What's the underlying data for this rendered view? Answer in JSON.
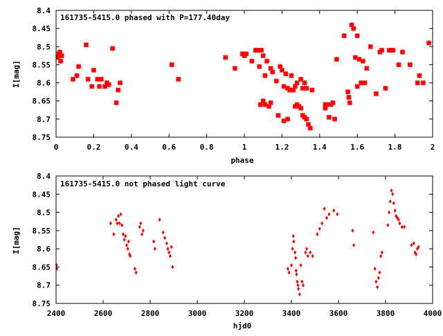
{
  "colors": {
    "points": "#ff0000",
    "frame": "#000000",
    "background": "#ffffff"
  },
  "chart_data": [
    {
      "type": "scatter",
      "title": "161735-5415.0 phased with P=177.40day",
      "xlabel": "phase",
      "ylabel": "I[mag]",
      "xlim": [
        0,
        2
      ],
      "ylim": [
        8.4,
        8.75
      ],
      "y_inverted": true,
      "grid": false,
      "x_ticks": [
        "0",
        "0.2",
        "0.4",
        "0.6",
        "0.8",
        "1",
        "1.2",
        "1.4",
        "1.6",
        "1.8",
        "2"
      ],
      "y_ticks": [
        "8.4",
        "8.45",
        "8.5",
        "8.55",
        "8.6",
        "8.65",
        "8.7",
        "8.75"
      ],
      "marker": "star",
      "series": [
        {
          "points": [
            [
              0.01,
              8.53
            ],
            [
              0.015,
              8.52
            ],
            [
              0.02,
              8.515
            ],
            [
              0.025,
              8.54
            ],
            [
              0.03,
              8.525
            ],
            [
              0.09,
              8.59
            ],
            [
              0.11,
              8.58
            ],
            [
              0.12,
              8.555
            ],
            [
              0.16,
              8.495
            ],
            [
              0.17,
              8.59
            ],
            [
              0.19,
              8.61
            ],
            [
              0.2,
              8.565
            ],
            [
              0.22,
              8.59
            ],
            [
              0.23,
              8.61
            ],
            [
              0.24,
              8.59
            ],
            [
              0.26,
              8.61
            ],
            [
              0.27,
              8.6
            ],
            [
              0.28,
              8.605
            ],
            [
              0.3,
              8.505
            ],
            [
              0.32,
              8.655
            ],
            [
              0.33,
              8.62
            ],
            [
              0.34,
              8.6
            ],
            [
              0.615,
              8.55
            ],
            [
              0.65,
              8.59
            ],
            [
              0.9,
              8.53
            ],
            [
              0.95,
              8.56
            ],
            [
              0.99,
              8.52
            ],
            [
              1.0,
              8.525
            ],
            [
              1.01,
              8.52
            ],
            [
              1.04,
              8.54
            ],
            [
              1.06,
              8.51
            ],
            [
              1.07,
              8.51
            ],
            [
              1.08,
              8.555
            ],
            [
              1.085,
              8.66
            ],
            [
              1.09,
              8.51
            ],
            [
              1.1,
              8.65
            ],
            [
              1.1,
              8.525
            ],
            [
              1.11,
              8.58
            ],
            [
              1.11,
              8.66
            ],
            [
              1.12,
              8.54
            ],
            [
              1.13,
              8.665
            ],
            [
              1.14,
              8.655
            ],
            [
              1.14,
              8.56
            ],
            [
              1.15,
              8.57
            ],
            [
              1.17,
              8.595
            ],
            [
              1.18,
              8.69
            ],
            [
              1.19,
              8.555
            ],
            [
              1.2,
              8.565
            ],
            [
              1.21,
              8.61
            ],
            [
              1.21,
              8.705
            ],
            [
              1.22,
              8.575
            ],
            [
              1.23,
              8.615
            ],
            [
              1.23,
              8.7
            ],
            [
              1.24,
              8.62
            ],
            [
              1.25,
              8.58
            ],
            [
              1.25,
              8.62
            ],
            [
              1.26,
              8.62
            ],
            [
              1.27,
              8.61
            ],
            [
              1.27,
              8.665
            ],
            [
              1.28,
              8.6
            ],
            [
              1.28,
              8.66
            ],
            [
              1.29,
              8.665
            ],
            [
              1.3,
              8.59
            ],
            [
              1.3,
              8.67
            ],
            [
              1.31,
              8.615
            ],
            [
              1.31,
              8.69
            ],
            [
              1.32,
              8.695
            ],
            [
              1.32,
              8.6
            ],
            [
              1.33,
              8.615
            ],
            [
              1.33,
              8.7
            ],
            [
              1.34,
              8.715
            ],
            [
              1.35,
              8.725
            ],
            [
              1.36,
              8.62
            ],
            [
              1.43,
              8.66
            ],
            [
              1.43,
              8.67
            ],
            [
              1.44,
              8.66
            ],
            [
              1.45,
              8.695
            ],
            [
              1.46,
              8.66
            ],
            [
              1.47,
              8.655
            ],
            [
              1.48,
              8.7
            ],
            [
              1.49,
              8.535
            ],
            [
              1.53,
              8.47
            ],
            [
              1.55,
              8.625
            ],
            [
              1.555,
              8.64
            ],
            [
              1.56,
              8.655
            ],
            [
              1.57,
              8.44
            ],
            [
              1.58,
              8.45
            ],
            [
              1.59,
              8.53
            ],
            [
              1.6,
              8.47
            ],
            [
              1.6,
              8.61
            ],
            [
              1.61,
              8.535
            ],
            [
              1.62,
              8.6
            ],
            [
              1.63,
              8.54
            ],
            [
              1.64,
              8.6
            ],
            [
              1.65,
              8.56
            ],
            [
              1.67,
              8.5
            ],
            [
              1.7,
              8.63
            ],
            [
              1.72,
              8.515
            ],
            [
              1.73,
              8.51
            ],
            [
              1.75,
              8.615
            ],
            [
              1.77,
              8.51
            ],
            [
              1.79,
              8.51
            ],
            [
              1.82,
              8.55
            ],
            [
              1.84,
              8.515
            ],
            [
              1.88,
              8.55
            ],
            [
              1.92,
              8.6
            ],
            [
              1.93,
              8.58
            ],
            [
              1.95,
              8.6
            ],
            [
              1.98,
              8.49
            ]
          ]
        }
      ]
    },
    {
      "type": "scatter",
      "title": "161735-5415.0 not phased light curve",
      "xlabel": "hjd0",
      "ylabel": "I[mag]",
      "xlim": [
        2400,
        4000
      ],
      "ylim": [
        8.4,
        8.75
      ],
      "y_inverted": true,
      "grid": false,
      "x_ticks": [
        "2400",
        "2600",
        "2800",
        "3000",
        "3200",
        "3400",
        "3600",
        "3800",
        "4000"
      ],
      "y_ticks": [
        "8.4",
        "8.45",
        "8.5",
        "8.55",
        "8.6",
        "8.65",
        "8.7",
        "8.75"
      ],
      "marker": "diamond",
      "series": [
        {
          "points": [
            [
              2402,
              8.645
            ],
            [
              2403,
              8.655
            ],
            [
              2632,
              8.53
            ],
            [
              2645,
              8.56
            ],
            [
              2655,
              8.52
            ],
            [
              2660,
              8.53
            ],
            [
              2665,
              8.51
            ],
            [
              2670,
              8.53
            ],
            [
              2675,
              8.505
            ],
            [
              2680,
              8.535
            ],
            [
              2685,
              8.56
            ],
            [
              2690,
              8.575
            ],
            [
              2695,
              8.565
            ],
            [
              2700,
              8.59
            ],
            [
              2705,
              8.6
            ],
            [
              2708,
              8.58
            ],
            [
              2712,
              8.615
            ],
            [
              2715,
              8.62
            ],
            [
              2735,
              8.655
            ],
            [
              2740,
              8.665
            ],
            [
              2755,
              8.54
            ],
            [
              2760,
              8.53
            ],
            [
              2765,
              8.56
            ],
            [
              2770,
              8.55
            ],
            [
              2815,
              8.58
            ],
            [
              2820,
              8.6
            ],
            [
              2840,
              8.52
            ],
            [
              2855,
              8.555
            ],
            [
              2862,
              8.57
            ],
            [
              2870,
              8.585
            ],
            [
              2875,
              8.6
            ],
            [
              2880,
              8.61
            ],
            [
              2885,
              8.62
            ],
            [
              2890,
              8.595
            ],
            [
              2895,
              8.65
            ],
            [
              3385,
              8.655
            ],
            [
              3390,
              8.665
            ],
            [
              3400,
              8.645
            ],
            [
              3405,
              8.6
            ],
            [
              3408,
              8.565
            ],
            [
              3410,
              8.58
            ],
            [
              3415,
              8.61
            ],
            [
              3418,
              8.625
            ],
            [
              3420,
              8.66
            ],
            [
              3422,
              8.67
            ],
            [
              3425,
              8.69
            ],
            [
              3428,
              8.7
            ],
            [
              3430,
              8.71
            ],
            [
              3435,
              8.725
            ],
            [
              3440,
              8.645
            ],
            [
              3445,
              8.69
            ],
            [
              3450,
              8.7
            ],
            [
              3460,
              8.61
            ],
            [
              3465,
              8.6
            ],
            [
              3470,
              8.62
            ],
            [
              3480,
              8.61
            ],
            [
              3490,
              8.62
            ],
            [
              3510,
              8.56
            ],
            [
              3520,
              8.545
            ],
            [
              3530,
              8.53
            ],
            [
              3540,
              8.49
            ],
            [
              3550,
              8.515
            ],
            [
              3560,
              8.505
            ],
            [
              3580,
              8.495
            ],
            [
              3595,
              8.505
            ],
            [
              3660,
              8.55
            ],
            [
              3665,
              8.59
            ],
            [
              3748,
              8.555
            ],
            [
              3755,
              8.655
            ],
            [
              3760,
              8.69
            ],
            [
              3765,
              8.705
            ],
            [
              3770,
              8.68
            ],
            [
              3775,
              8.665
            ],
            [
              3780,
              8.62
            ],
            [
              3785,
              8.61
            ],
            [
              3810,
              8.535
            ],
            [
              3815,
              8.5
            ],
            [
              3820,
              8.47
            ],
            [
              3825,
              8.44
            ],
            [
              3830,
              8.45
            ],
            [
              3835,
              8.475
            ],
            [
              3840,
              8.495
            ],
            [
              3845,
              8.51
            ],
            [
              3850,
              8.515
            ],
            [
              3855,
              8.52
            ],
            [
              3860,
              8.53
            ],
            [
              3870,
              8.54
            ],
            [
              3880,
              8.54
            ],
            [
              3910,
              8.59
            ],
            [
              3920,
              8.585
            ],
            [
              3925,
              8.61
            ],
            [
              3930,
              8.615
            ],
            [
              3935,
              8.6
            ],
            [
              3940,
              8.595
            ]
          ]
        }
      ]
    }
  ]
}
